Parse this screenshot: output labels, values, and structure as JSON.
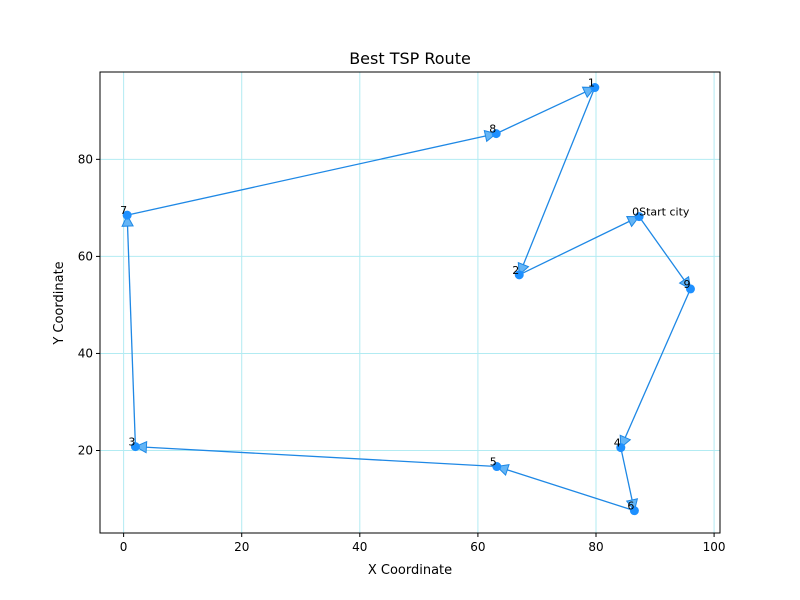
{
  "chart_data": {
    "type": "scatter",
    "title": "Best TSP Route",
    "xlabel": "X Coordinate",
    "ylabel": "Y Coordinate",
    "xlim": [
      -4,
      101
    ],
    "ylim": [
      3,
      98
    ],
    "xticks": [
      0,
      20,
      40,
      60,
      80,
      100
    ],
    "yticks": [
      20,
      40,
      60,
      80
    ],
    "grid": true,
    "colors": {
      "route": "#1e88e5",
      "point": "#1e90ff",
      "arrow_fill": "#64b5f6",
      "grid": "#b2ebf2"
    },
    "cities": [
      {
        "label": "0",
        "x": 87.3,
        "y": 68.2,
        "note": "Start city"
      },
      {
        "label": "1",
        "x": 79.8,
        "y": 94.8
      },
      {
        "label": "2",
        "x": 67.0,
        "y": 56.2
      },
      {
        "label": "3",
        "x": 2.0,
        "y": 20.8
      },
      {
        "label": "4",
        "x": 84.2,
        "y": 20.6
      },
      {
        "label": "5",
        "x": 63.2,
        "y": 16.7
      },
      {
        "label": "6",
        "x": 86.5,
        "y": 7.6
      },
      {
        "label": "7",
        "x": 0.6,
        "y": 68.5
      },
      {
        "label": "8",
        "x": 63.1,
        "y": 85.3
      },
      {
        "label": "9",
        "x": 96.0,
        "y": 53.3
      }
    ],
    "route": [
      0,
      9,
      4,
      6,
      5,
      3,
      7,
      8,
      1,
      2,
      0
    ]
  }
}
